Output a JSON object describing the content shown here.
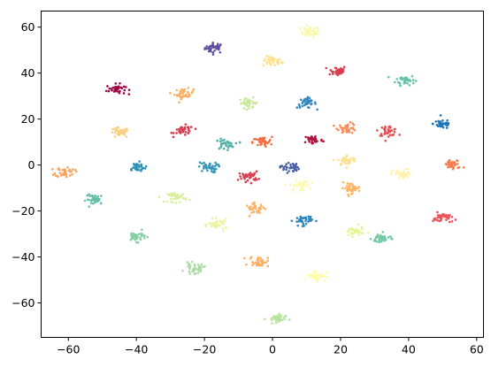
{
  "chart_data": {
    "type": "scatter",
    "title": "",
    "xlabel": "",
    "ylabel": "",
    "xlim": [
      -68,
      62
    ],
    "ylim": [
      -75,
      67
    ],
    "xticks": [
      -60,
      -40,
      -20,
      0,
      20,
      40,
      60
    ],
    "yticks": [
      -60,
      -40,
      -20,
      0,
      20,
      40,
      60
    ],
    "grid": false,
    "legend": "none",
    "point_color_scale": "Spectral",
    "clusters": [
      {
        "cx": -17,
        "cy": 51,
        "color": "#5e4fa2"
      },
      {
        "cx": 11,
        "cy": 58,
        "color": "#f6f9a8"
      },
      {
        "cx": 0,
        "cy": 45,
        "color": "#fee08b"
      },
      {
        "cx": 19,
        "cy": 41,
        "color": "#d53e4f"
      },
      {
        "cx": 39,
        "cy": 37,
        "color": "#66c2a5"
      },
      {
        "cx": -46,
        "cy": 33,
        "color": "#9e0142"
      },
      {
        "cx": -26,
        "cy": 31,
        "color": "#fdae61"
      },
      {
        "cx": -7,
        "cy": 27,
        "color": "#c9e89c"
      },
      {
        "cx": 10,
        "cy": 27,
        "color": "#3288bd"
      },
      {
        "cx": 50,
        "cy": 18,
        "color": "#1f77b4"
      },
      {
        "cx": -45,
        "cy": 14,
        "color": "#fed081"
      },
      {
        "cx": -26,
        "cy": 15,
        "color": "#d53e4f"
      },
      {
        "cx": 22,
        "cy": 16,
        "color": "#f68d59"
      },
      {
        "cx": 34,
        "cy": 15,
        "color": "#e04e4e"
      },
      {
        "cx": -14,
        "cy": 9,
        "color": "#4fb0a8"
      },
      {
        "cx": -3,
        "cy": 10,
        "color": "#f46d43"
      },
      {
        "cx": 12,
        "cy": 11,
        "color": "#b1123e"
      },
      {
        "cx": 22,
        "cy": 2,
        "color": "#fee08b"
      },
      {
        "cx": -61,
        "cy": -3,
        "color": "#fba35e"
      },
      {
        "cx": -40,
        "cy": -1,
        "color": "#2d8fb5"
      },
      {
        "cx": -19,
        "cy": -1,
        "color": "#3397b9"
      },
      {
        "cx": 5,
        "cy": -1,
        "color": "#4b5fa8"
      },
      {
        "cx": 38,
        "cy": -4,
        "color": "#fff1a8"
      },
      {
        "cx": 53,
        "cy": 0,
        "color": "#f57c4f"
      },
      {
        "cx": -7,
        "cy": -5,
        "color": "#d6404f"
      },
      {
        "cx": 8,
        "cy": -9,
        "color": "#fbf9b0"
      },
      {
        "cx": 23,
        "cy": -10,
        "color": "#fdb466"
      },
      {
        "cx": -52,
        "cy": -15,
        "color": "#62bfa5"
      },
      {
        "cx": -28,
        "cy": -14,
        "color": "#d9ef9b"
      },
      {
        "cx": -5,
        "cy": -19,
        "color": "#fdb466"
      },
      {
        "cx": 9,
        "cy": -24,
        "color": "#2b85be"
      },
      {
        "cx": 50,
        "cy": -23,
        "color": "#e8545a"
      },
      {
        "cx": -40,
        "cy": -31,
        "color": "#86cfa5"
      },
      {
        "cx": -16,
        "cy": -26,
        "color": "#e9f59f"
      },
      {
        "cx": 24,
        "cy": -29,
        "color": "#e5f49b"
      },
      {
        "cx": 32,
        "cy": -32,
        "color": "#72c7a5"
      },
      {
        "cx": -23,
        "cy": -45,
        "color": "#abdda4"
      },
      {
        "cx": -4,
        "cy": -42,
        "color": "#fdae61"
      },
      {
        "cx": 13,
        "cy": -48,
        "color": "#fffba8"
      },
      {
        "cx": 1,
        "cy": -67,
        "color": "#b9e3a0"
      }
    ]
  }
}
